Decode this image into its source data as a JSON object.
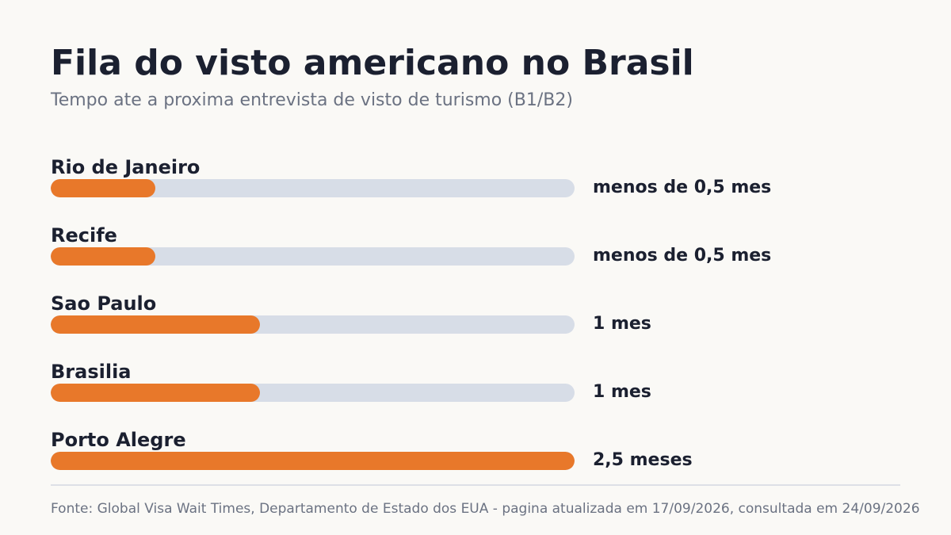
{
  "chart_data": {
    "type": "bar",
    "orientation": "horizontal",
    "title": "Fila do visto americano no Brasil",
    "subtitle": "Tempo ate a proxima entrevista de visto de turismo (B1/B2)",
    "xlim": [
      0,
      2.5
    ],
    "grid": false,
    "categories": [
      "Rio de Janeiro",
      "Recife",
      "Sao Paulo",
      "Brasilia",
      "Porto Alegre"
    ],
    "values": [
      0.5,
      0.5,
      1,
      1,
      2.5
    ],
    "value_labels": [
      "menos de 0,5 mes",
      "menos de 0,5 mes",
      "1 mes",
      "1 mes",
      "2,5 meses"
    ],
    "source": "Fonte: Global Visa Wait Times, Departamento de Estado dos EUA - pagina atualizada em 17/09/2026, consultada em 24/09/2026"
  },
  "colors": {
    "bar_fill": "#e8782a",
    "bar_track": "#d7dde7",
    "text": "#1b2030",
    "muted_text": "#6b7282",
    "background": "#faf9f6"
  }
}
